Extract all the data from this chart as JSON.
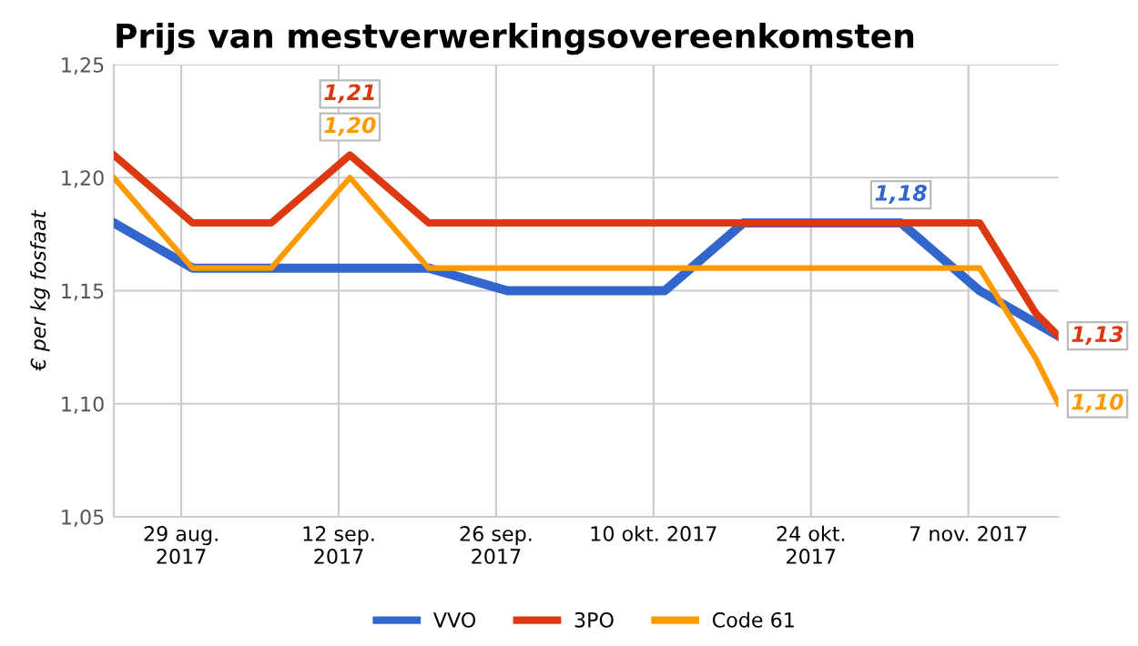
{
  "chart_data": {
    "type": "line",
    "title": "Prijs van mestverwerkingsovereenkomsten",
    "ylabel": "€ per kg fosfaat",
    "x": [
      "2017-08-23",
      "2017-08-30",
      "2017-09-06",
      "2017-09-13",
      "2017-09-20",
      "2017-09-27",
      "2017-10-04",
      "2017-10-11",
      "2017-10-18",
      "2017-10-25",
      "2017-11-01",
      "2017-11-08",
      "2017-11-15"
    ],
    "series": [
      {
        "name": "VVO",
        "color": "#3366cc",
        "values": [
          1.18,
          1.16,
          1.16,
          1.16,
          1.16,
          1.15,
          1.15,
          1.15,
          1.18,
          1.18,
          1.18,
          1.15,
          1.13
        ],
        "value_labels": [
          null,
          null,
          null,
          null,
          null,
          null,
          null,
          null,
          null,
          null,
          "1,18",
          null,
          null
        ]
      },
      {
        "name": "3PO",
        "color": "#dc3912",
        "x": [
          "2017-08-23",
          "2017-08-30",
          "2017-09-06",
          "2017-09-13",
          "2017-09-20",
          "2017-09-27",
          "2017-10-04",
          "2017-10-11",
          "2017-10-18",
          "2017-10-25",
          "2017-11-01",
          "2017-11-08",
          "2017-11-13",
          "2017-11-15"
        ],
        "values": [
          1.21,
          1.18,
          1.18,
          1.21,
          1.18,
          1.18,
          1.18,
          1.18,
          1.18,
          1.18,
          1.18,
          1.18,
          1.14,
          1.13
        ],
        "value_labels": [
          null,
          null,
          null,
          "1,21",
          null,
          null,
          null,
          null,
          null,
          null,
          null,
          null,
          null,
          "1,13"
        ]
      },
      {
        "name": "Code 61",
        "color": "#ff9900",
        "x": [
          "2017-08-23",
          "2017-08-30",
          "2017-09-06",
          "2017-09-13",
          "2017-09-20",
          "2017-09-27",
          "2017-10-04",
          "2017-10-11",
          "2017-10-18",
          "2017-10-25",
          "2017-11-01",
          "2017-11-08",
          "2017-11-13",
          "2017-11-15"
        ],
        "values": [
          1.2,
          1.16,
          1.16,
          1.2,
          1.16,
          1.16,
          1.16,
          1.16,
          1.16,
          1.16,
          1.16,
          1.16,
          1.12,
          1.1
        ],
        "value_labels": [
          null,
          null,
          null,
          "1,20",
          null,
          null,
          null,
          null,
          null,
          null,
          null,
          null,
          null,
          "1,10"
        ]
      }
    ],
    "xlim": [
      "2017-08-23",
      "2017-11-15"
    ],
    "xticks": [
      {
        "value": "2017-08-29",
        "label": "29 aug.\n2017"
      },
      {
        "value": "2017-09-12",
        "label": "12 sep.\n2017"
      },
      {
        "value": "2017-09-26",
        "label": "26 sep.\n2017"
      },
      {
        "value": "2017-10-10",
        "label": "10 okt. 2017"
      },
      {
        "value": "2017-10-24",
        "label": "24 okt.\n2017"
      },
      {
        "value": "2017-11-07",
        "label": "7 nov. 2017"
      }
    ],
    "ylim": [
      1.05,
      1.25
    ],
    "yticks": [
      {
        "value": 1.05,
        "label": "1,05"
      },
      {
        "value": 1.1,
        "label": "1,10"
      },
      {
        "value": 1.15,
        "label": "1,15"
      },
      {
        "value": 1.2,
        "label": "1,20"
      },
      {
        "value": 1.25,
        "label": "1,25"
      }
    ],
    "grid": true,
    "legend": "bottom",
    "marker": "none",
    "line_style": "solid"
  }
}
